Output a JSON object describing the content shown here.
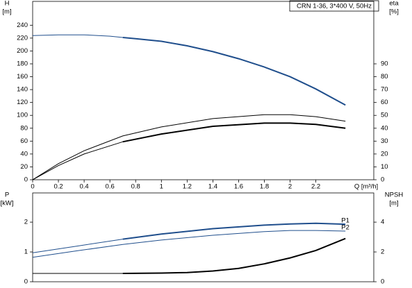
{
  "chart_data": [
    {
      "type": "line",
      "title": "CRN 1-36, 3*400 V, 50Hz",
      "xlabel": "Q [m³/h]",
      "ylabel": "H",
      "yunit": "[m]",
      "y2label": "eta",
      "y2unit": "[%]",
      "xlim": [
        0,
        2.65
      ],
      "xticks": [
        0,
        0.2,
        0.4,
        0.6,
        0.8,
        1.0,
        1.2,
        1.4,
        1.6,
        1.8,
        2.0,
        2.2
      ],
      "ylim": [
        0,
        277
      ],
      "yticks": [
        0,
        20,
        40,
        60,
        80,
        100,
        120,
        140,
        160,
        180,
        200,
        220,
        240
      ],
      "y2lim": [
        0,
        138.5
      ],
      "y2ticks": [
        0,
        10,
        20,
        30,
        40,
        50,
        60,
        70,
        80,
        90
      ],
      "series": [
        {
          "color": "#1f4e8c",
          "width": 1,
          "x": [
            0,
            0.2,
            0.4,
            0.6,
            0.7
          ],
          "values": [
            224,
            225,
            225,
            223,
            221
          ]
        },
        {
          "color": "#1f4e8c",
          "width": 2,
          "x": [
            0.7,
            0.8,
            1.0,
            1.2,
            1.4,
            1.6,
            1.8,
            2.0,
            2.2,
            2.43
          ],
          "values": [
            221,
            219,
            215,
            208,
            199,
            188,
            175,
            160,
            141,
            116
          ]
        },
        {
          "color": "#000000",
          "width": 1,
          "axis": "y2",
          "x": [
            0,
            0.2,
            0.4,
            0.7,
            1.0,
            1.4,
            1.8,
            2.0,
            2.2,
            2.43
          ],
          "values": [
            0,
            12.5,
            22.5,
            34,
            41,
            47.5,
            50.5,
            50.5,
            49,
            45.5
          ]
        },
        {
          "color": "#000000",
          "width": 1,
          "axis": "y2",
          "x": [
            0,
            0.2,
            0.4,
            0.7
          ],
          "values": [
            0,
            11,
            20,
            29.5
          ]
        },
        {
          "color": "#000000",
          "width": 2,
          "axis": "y2",
          "x": [
            0.7,
            1.0,
            1.4,
            1.8,
            2.0,
            2.2,
            2.43
          ],
          "values": [
            29.5,
            35.5,
            41.5,
            44,
            44,
            43,
            40
          ]
        }
      ]
    },
    {
      "type": "line",
      "ylabel": "P",
      "yunit": "[kW]",
      "y2label": "NPSH",
      "y2unit": "[m]",
      "xlim": [
        0,
        2.65
      ],
      "ylim": [
        0,
        2.98
      ],
      "yticks": [
        0,
        1,
        2
      ],
      "y2lim": [
        0,
        5.96
      ],
      "y2ticks": [
        0,
        2,
        4
      ],
      "series": [
        {
          "color": "#1f4e8c",
          "width": 1,
          "x": [
            0,
            0.35,
            0.7
          ],
          "values": [
            0.97,
            1.2,
            1.43
          ]
        },
        {
          "name": "P1",
          "color": "#1f4e8c",
          "width": 2,
          "x": [
            0.7,
            1.0,
            1.4,
            1.8,
            2.0,
            2.2,
            2.43
          ],
          "values": [
            1.43,
            1.6,
            1.78,
            1.9,
            1.94,
            1.96,
            1.93
          ]
        },
        {
          "name": "P2",
          "color": "#1f4e8c",
          "width": 1,
          "x": [
            0,
            0.35,
            0.7,
            1.0,
            1.4,
            1.8,
            2.0,
            2.2,
            2.43
          ],
          "values": [
            0.82,
            1.04,
            1.25,
            1.4,
            1.56,
            1.68,
            1.72,
            1.72,
            1.7
          ]
        },
        {
          "color": "#000000",
          "width": 1,
          "axis": "y2",
          "x": [
            0,
            0.7
          ],
          "values": [
            0.56,
            0.56
          ]
        },
        {
          "color": "#000000",
          "width": 2,
          "axis": "y2",
          "x": [
            0.7,
            1.0,
            1.2,
            1.4,
            1.6,
            1.8,
            2.0,
            2.2,
            2.43
          ],
          "values": [
            0.56,
            0.58,
            0.62,
            0.72,
            0.9,
            1.2,
            1.6,
            2.1,
            2.9
          ]
        }
      ]
    }
  ]
}
